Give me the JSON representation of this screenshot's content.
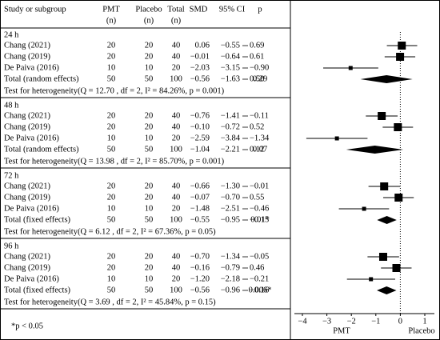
{
  "chart_data": {
    "type": "forest",
    "columns": [
      {
        "label": "Study or subgroup"
      },
      {
        "label": "PMT",
        "unit": "(n)"
      },
      {
        "label": "Placebo",
        "unit": "(n)"
      },
      {
        "label": "Total",
        "unit": "(n)"
      },
      {
        "label": "SMD"
      },
      {
        "label": "95% CI"
      },
      {
        "label": "p"
      }
    ],
    "groups": [
      {
        "name": "24 h",
        "studies": [
          {
            "name": "Chang (2021)",
            "pmt": 20,
            "placebo": 20,
            "total": 40,
            "smd": 0.06,
            "lo": -0.55,
            "hi": 0.69
          },
          {
            "name": "Chang (2019)",
            "pmt": 20,
            "placebo": 20,
            "total": 40,
            "smd": -0.01,
            "lo": -0.64,
            "hi": 0.61
          },
          {
            "name": "De Paiva (2016)",
            "pmt": 10,
            "placebo": 10,
            "total": 20,
            "smd": -2.03,
            "lo": -3.15,
            "hi": -0.9
          }
        ],
        "pooled": {
          "name": "Total (random effects)",
          "pmt": 50,
          "placebo": 50,
          "total": 100,
          "smd": -0.56,
          "lo": -1.63,
          "hi": 0.5,
          "p": "0.29"
        },
        "heterogeneity": "Test for heterogeneity(Q = 12.70 , df = 2, I² = 84.26%, p = 0.001)"
      },
      {
        "name": "48 h",
        "studies": [
          {
            "name": "Chang (2021)",
            "pmt": 20,
            "placebo": 20,
            "total": 40,
            "smd": -0.76,
            "lo": -1.41,
            "hi": -0.11
          },
          {
            "name": "Chang (2019)",
            "pmt": 20,
            "placebo": 20,
            "total": 40,
            "smd": -0.1,
            "lo": -0.72,
            "hi": 0.52
          },
          {
            "name": "De Paiva (2016)",
            "pmt": 10,
            "placebo": 10,
            "total": 20,
            "smd": -2.59,
            "lo": -3.84,
            "hi": -1.34
          }
        ],
        "pooled": {
          "name": "Total (random effects)",
          "pmt": 50,
          "placebo": 50,
          "total": 100,
          "smd": -1.04,
          "lo": -2.21,
          "hi": 0.12,
          "p": "0.07"
        },
        "heterogeneity": "Test for heterogeneity(Q = 13.98 , df = 2, I² = 85.70%, p = 0.001)"
      },
      {
        "name": "72 h",
        "studies": [
          {
            "name": "Chang (2021)",
            "pmt": 20,
            "placebo": 20,
            "total": 40,
            "smd": -0.66,
            "lo": -1.3,
            "hi": -0.01
          },
          {
            "name": "Chang (2019)",
            "pmt": 20,
            "placebo": 20,
            "total": 40,
            "smd": -0.07,
            "lo": -0.7,
            "hi": 0.55
          },
          {
            "name": "De Paiva (2016)",
            "pmt": 10,
            "placebo": 10,
            "total": 20,
            "smd": -1.48,
            "lo": -2.51,
            "hi": -0.46
          }
        ],
        "pooled": {
          "name": "Total (fixed effects)",
          "pmt": 50,
          "placebo": 50,
          "total": 100,
          "smd": -0.55,
          "lo": -0.95,
          "hi": -0.15,
          "p": "0.01*"
        },
        "heterogeneity": "Test for heterogeneity(Q = 6.12 , df = 2, I² = 67.36%, p = 0.05)"
      },
      {
        "name": "96 h",
        "studies": [
          {
            "name": "Chang (2021)",
            "pmt": 20,
            "placebo": 20,
            "total": 40,
            "smd": -0.7,
            "lo": -1.34,
            "hi": -0.05
          },
          {
            "name": "Chang (2019)",
            "pmt": 20,
            "placebo": 20,
            "total": 40,
            "smd": -0.16,
            "lo": -0.79,
            "hi": 0.46
          },
          {
            "name": "De Paiva (2016)",
            "pmt": 10,
            "placebo": 10,
            "total": 20,
            "smd": -1.2,
            "lo": -2.18,
            "hi": -0.21
          }
        ],
        "pooled": {
          "name": "Total (fixed effects)",
          "pmt": 50,
          "placebo": 50,
          "total": 100,
          "smd": -0.56,
          "lo": -0.96,
          "hi": -0.16,
          "p": "0.006*"
        },
        "heterogeneity": "Test for heterogeneity(Q = 3.69 , df = 2, I² = 45.84%, p = 0.15)"
      }
    ],
    "xlim": [
      -4.2,
      1.5
    ],
    "xticks": [
      -4,
      -3,
      -2,
      -1,
      0,
      1
    ],
    "xlabel_left": "PMT",
    "xlabel_right": "Placebo",
    "footnote": "*p < 0.05"
  }
}
